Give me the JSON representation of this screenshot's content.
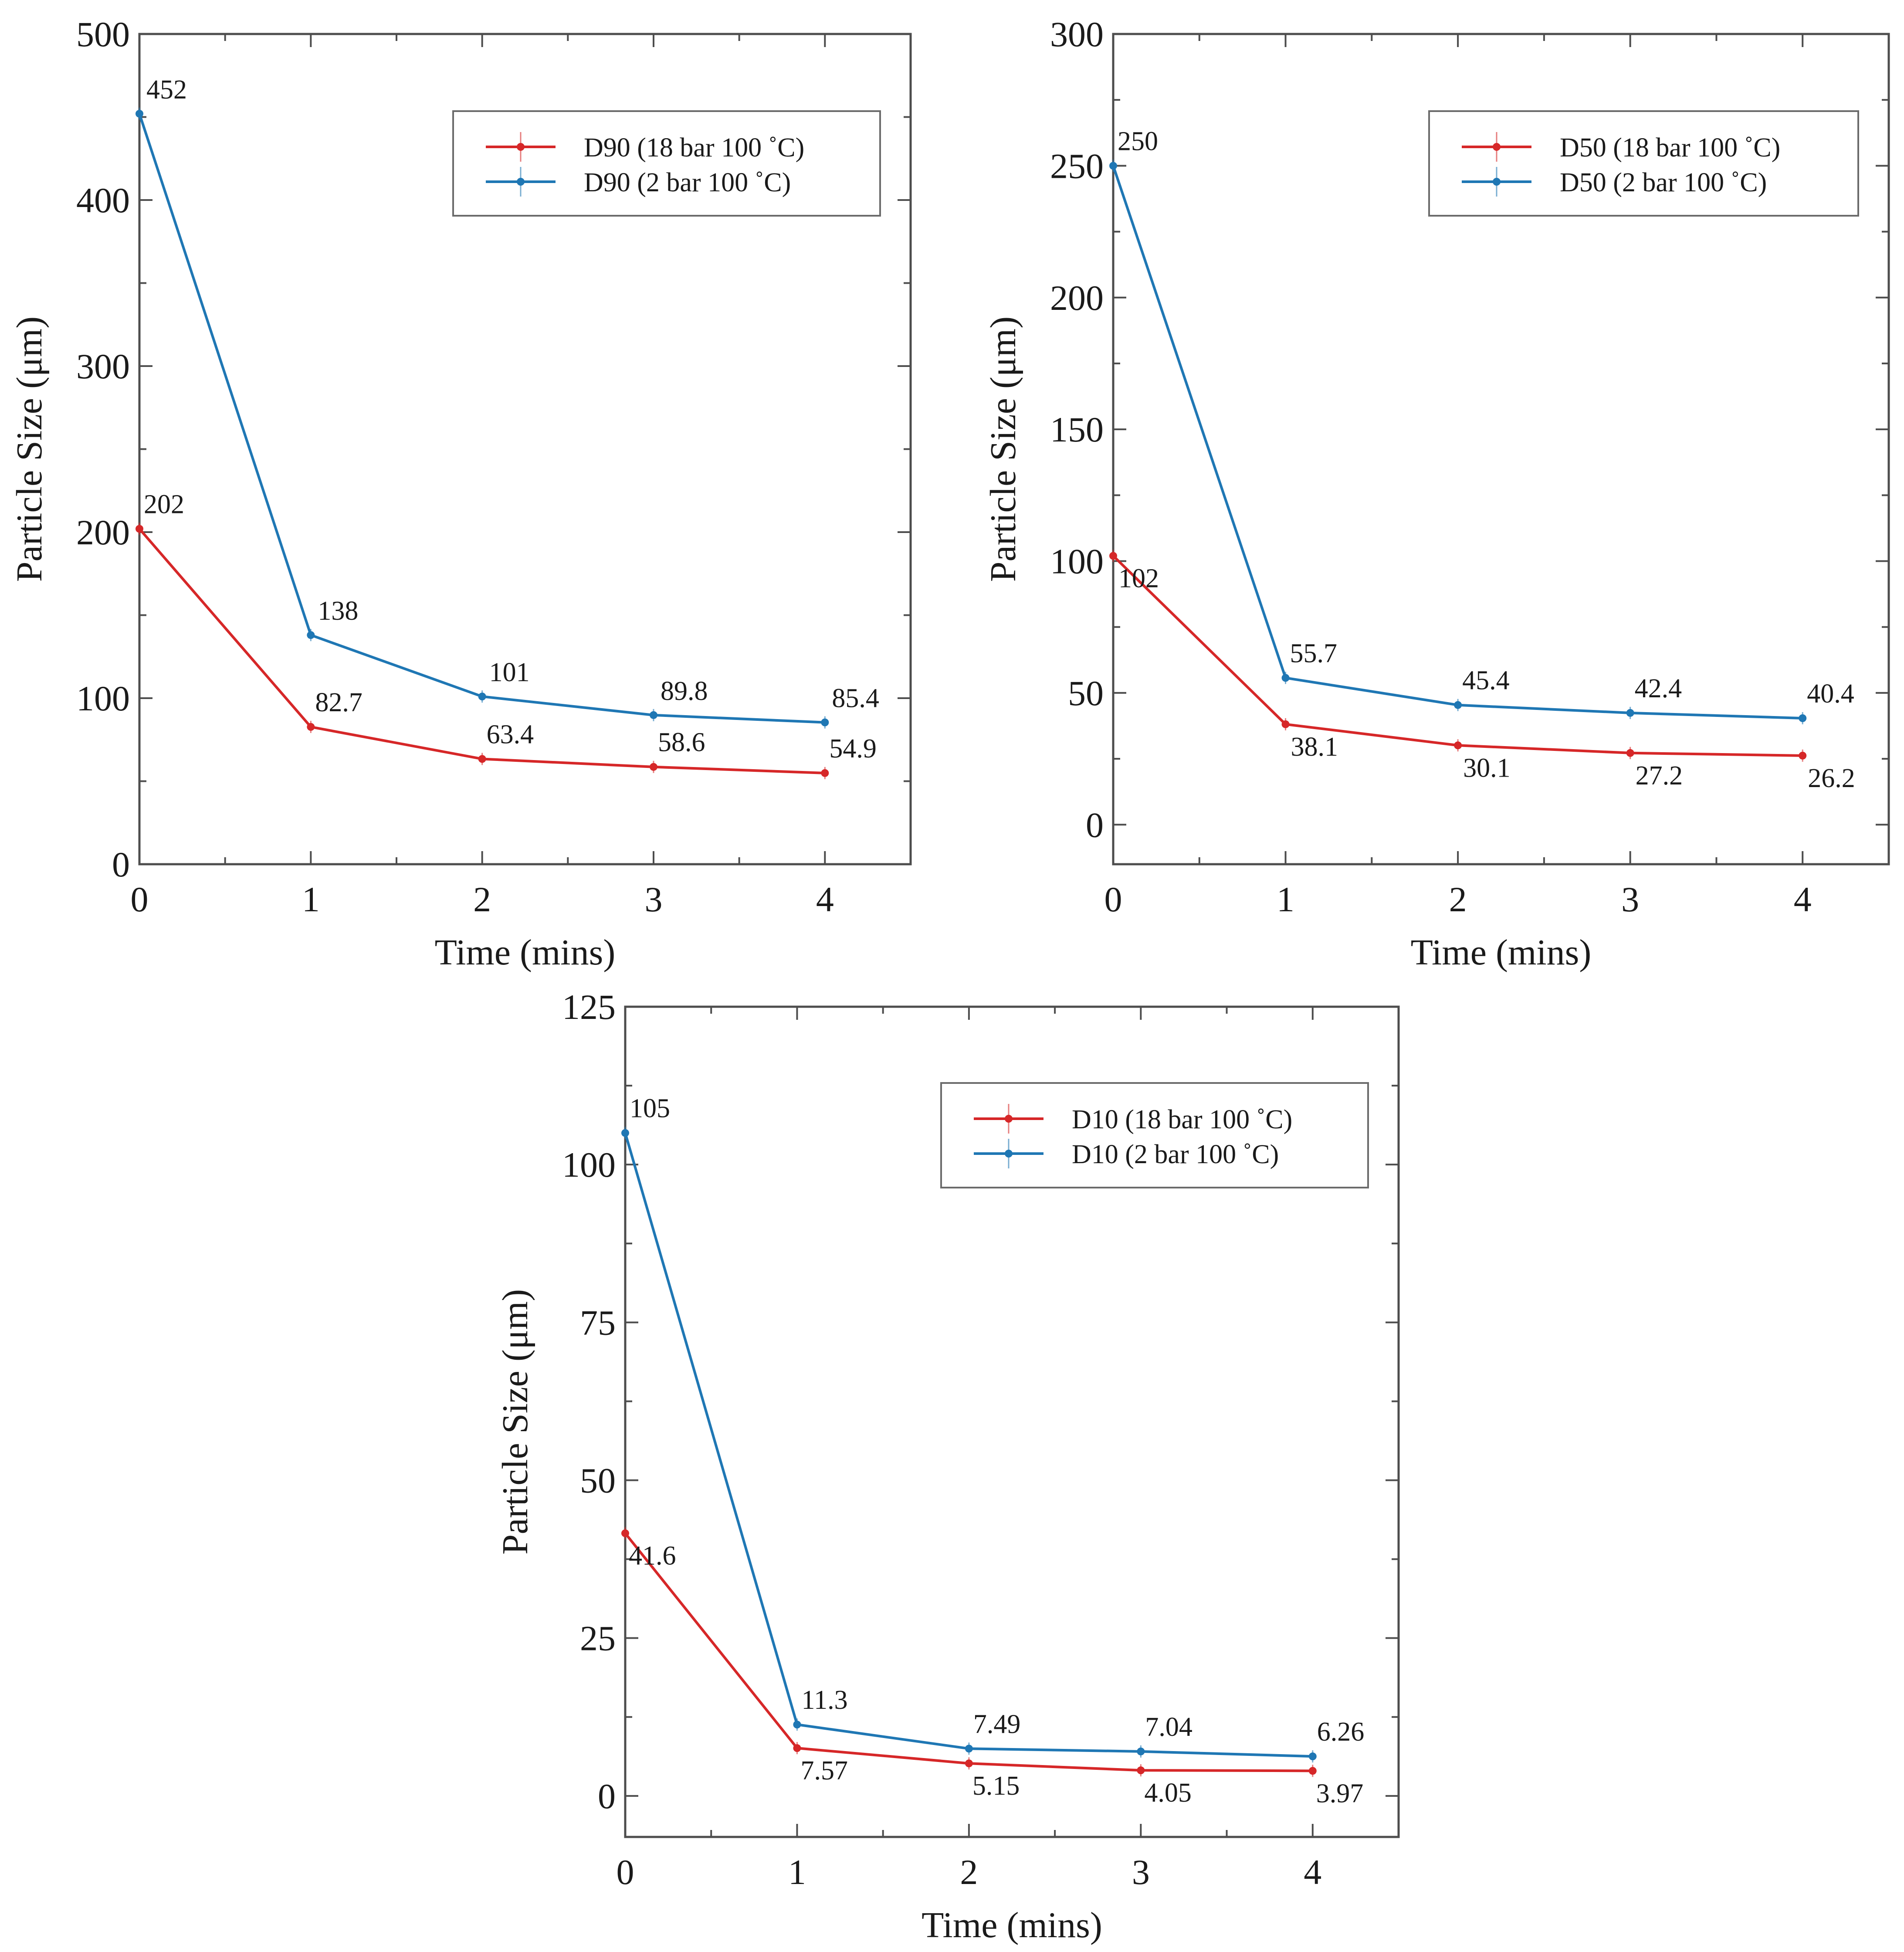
{
  "chart_data": [
    {
      "type": "line",
      "x": [
        0,
        1,
        2,
        3,
        4
      ],
      "xlabel": "Time (mins)",
      "ylabel": "Particle Size (μm)",
      "xlim": [
        0,
        4.5
      ],
      "ylim": [
        0,
        500
      ],
      "xticks": [
        "0",
        "1",
        "2",
        "3",
        "4"
      ],
      "yticks": [
        "0",
        "100",
        "200",
        "300",
        "400",
        "500"
      ],
      "legend_position": "top-right",
      "series": [
        {
          "name": "D90 (18 bar 100 ˚C)",
          "color": "#d62728",
          "values": [
            202,
            82.7,
            63.4,
            58.6,
            54.9
          ],
          "labels": [
            "202",
            "82.7",
            "63.4",
            "58.6",
            "54.9"
          ]
        },
        {
          "name": "D90 (2 bar 100 ˚C)",
          "color": "#1f77b4",
          "values": [
            452,
            138,
            101,
            89.8,
            85.4
          ],
          "labels": [
            "452",
            "138",
            "101",
            "89.8",
            "85.4"
          ]
        }
      ]
    },
    {
      "type": "line",
      "x": [
        0,
        1,
        2,
        3,
        4
      ],
      "xlabel": "Time (mins)",
      "ylabel": "Particle Size (μm)",
      "xlim": [
        0,
        4.5
      ],
      "ylim": [
        -15,
        300
      ],
      "xticks": [
        "0",
        "1",
        "2",
        "3",
        "4"
      ],
      "yticks": [
        "0",
        "50",
        "100",
        "150",
        "200",
        "250",
        "300"
      ],
      "legend_position": "top-right",
      "series": [
        {
          "name": "D50 (18 bar 100 ˚C)",
          "color": "#d62728",
          "values": [
            102,
            38.1,
            30.1,
            27.2,
            26.2
          ],
          "labels": [
            "102",
            "38.1",
            "30.1",
            "27.2",
            "26.2"
          ]
        },
        {
          "name": "D50 (2 bar 100 ˚C)",
          "color": "#1f77b4",
          "values": [
            250,
            55.7,
            45.4,
            42.4,
            40.4
          ],
          "labels": [
            "250",
            "55.7",
            "45.4",
            "42.4",
            "40.4"
          ]
        }
      ]
    },
    {
      "type": "line",
      "x": [
        0,
        1,
        2,
        3,
        4
      ],
      "xlabel": "Time (mins)",
      "ylabel": "Particle Size (μm)",
      "xlim": [
        0,
        4.5
      ],
      "ylim": [
        -6.5,
        125
      ],
      "xticks": [
        "0",
        "1",
        "2",
        "3",
        "4"
      ],
      "yticks": [
        "0",
        "25",
        "50",
        "75",
        "100",
        "125"
      ],
      "legend_position": "top-right",
      "series": [
        {
          "name": "D10 (18 bar 100 ˚C)",
          "color": "#d62728",
          "values": [
            41.6,
            7.57,
            5.15,
            4.05,
            3.97
          ],
          "labels": [
            "41.6",
            "7.57",
            "5.15",
            "4.05",
            "3.97"
          ]
        },
        {
          "name": "D10 (2 bar 100 ˚C)",
          "color": "#1f77b4",
          "values": [
            105,
            11.3,
            7.49,
            7.04,
            6.26
          ],
          "labels": [
            "105",
            "11.3",
            "7.49",
            "7.04",
            "6.26"
          ]
        }
      ]
    }
  ]
}
